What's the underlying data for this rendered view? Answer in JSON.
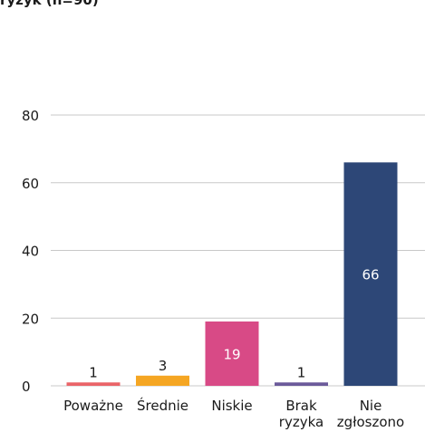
{
  "title_fragment": "ryzyk (n=90)",
  "chart_data": {
    "type": "bar",
    "categories": [
      [
        "Poważne"
      ],
      [
        "Średnie"
      ],
      [
        "Niskie"
      ],
      [
        "Brak",
        "ryzyka"
      ],
      [
        "Nie",
        "zgłoszono"
      ]
    ],
    "values": [
      1,
      3,
      19,
      1,
      66
    ],
    "data_labels": [
      "1",
      "3",
      "19",
      "1",
      "66"
    ],
    "colors": [
      "#ea6468",
      "#f5a623",
      "#d84a86",
      "#6b5a9a",
      "#2d4777"
    ],
    "label_inside": [
      false,
      false,
      true,
      false,
      true
    ],
    "ylim": [
      0,
      80
    ],
    "yticks": [
      0,
      20,
      40,
      60,
      80
    ],
    "grid": true,
    "xlabel": "",
    "ylabel": ""
  }
}
